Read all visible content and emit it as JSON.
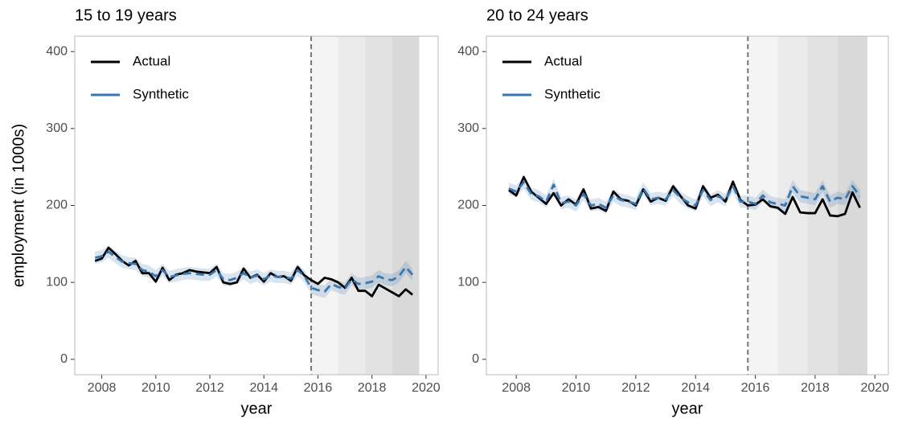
{
  "chart_data": [
    {
      "type": "line",
      "title": "15 to 19 years",
      "x_label": "year",
      "y_label": "employment (in 1000s)",
      "x": [
        2007.75,
        2008,
        2008.25,
        2008.5,
        2008.75,
        2009,
        2009.25,
        2009.5,
        2009.75,
        2010,
        2010.25,
        2010.5,
        2010.75,
        2011,
        2011.25,
        2011.5,
        2011.75,
        2012,
        2012.25,
        2012.5,
        2012.75,
        2013,
        2013.25,
        2013.5,
        2013.75,
        2014,
        2014.25,
        2014.5,
        2014.75,
        2015,
        2015.25,
        2015.5,
        2015.75,
        2016,
        2016.25,
        2016.5,
        2016.75,
        2017,
        2017.25,
        2017.5,
        2017.75,
        2018,
        2018.25,
        2018.5,
        2018.75,
        2019,
        2019.25,
        2019.5
      ],
      "series": [
        {
          "name": "Actual",
          "color": "#000000",
          "dash": false,
          "values": [
            128,
            131,
            145,
            137,
            128,
            122,
            128,
            112,
            112,
            101,
            119,
            103,
            110,
            112,
            116,
            114,
            113,
            112,
            120,
            100,
            98,
            100,
            118,
            106,
            110,
            101,
            112,
            107,
            108,
            102,
            120,
            109,
            103,
            98,
            106,
            104,
            100,
            93,
            106,
            89,
            89,
            82,
            97,
            92,
            87,
            82,
            91,
            84
          ]
        },
        {
          "name": "Synthetic",
          "color": "#3a76b0",
          "dash": true,
          "band_halfwidth": 8,
          "values": [
            132,
            134,
            140,
            133,
            127,
            125,
            124,
            116,
            114,
            108,
            116,
            107,
            109,
            111,
            112,
            111,
            110,
            110,
            116,
            104,
            103,
            106,
            112,
            106,
            109,
            104,
            109,
            107,
            107,
            105,
            116,
            108,
            93,
            90,
            88,
            98,
            94,
            92,
            104,
            98,
            99,
            101,
            108,
            104,
            103,
            108,
            120,
            110
          ]
        }
      ],
      "xlim": [
        2007.0,
        2020.45
      ],
      "ylim": [
        -20,
        420
      ],
      "xticks": [
        2008,
        2010,
        2012,
        2014,
        2016,
        2018,
        2020
      ],
      "yticks": [
        0,
        100,
        200,
        300,
        400
      ],
      "vline": 2015.75,
      "legend": "top-left",
      "shaded_periods": [
        {
          "start": 2015.75,
          "end": 2016.75,
          "color": "#f4f4f4"
        },
        {
          "start": 2016.75,
          "end": 2017.75,
          "color": "#ebebeb"
        },
        {
          "start": 2017.75,
          "end": 2018.75,
          "color": "#e2e2e2"
        },
        {
          "start": 2018.75,
          "end": 2019.75,
          "color": "#d9d9d9"
        }
      ]
    },
    {
      "type": "line",
      "title": "20 to 24 years",
      "x_label": "year",
      "x": [
        2007.75,
        2008,
        2008.25,
        2008.5,
        2008.75,
        2009,
        2009.25,
        2009.5,
        2009.75,
        2010,
        2010.25,
        2010.5,
        2010.75,
        2011,
        2011.25,
        2011.5,
        2011.75,
        2012,
        2012.25,
        2012.5,
        2012.75,
        2013,
        2013.25,
        2013.5,
        2013.75,
        2014,
        2014.25,
        2014.5,
        2014.75,
        2015,
        2015.25,
        2015.5,
        2015.75,
        2016,
        2016.25,
        2016.5,
        2016.75,
        2017,
        2017.25,
        2017.5,
        2017.75,
        2018,
        2018.25,
        2018.5,
        2018.75,
        2019,
        2019.25,
        2019.5
      ],
      "series": [
        {
          "name": "Actual",
          "color": "#000000",
          "dash": false,
          "values": [
            220,
            213,
            237,
            218,
            210,
            202,
            216,
            200,
            208,
            201,
            221,
            196,
            198,
            193,
            218,
            208,
            206,
            200,
            221,
            205,
            210,
            206,
            225,
            212,
            200,
            196,
            225,
            210,
            214,
            205,
            231,
            207,
            200,
            201,
            208,
            199,
            197,
            189,
            211,
            191,
            190,
            190,
            208,
            187,
            186,
            189,
            217,
            197
          ]
        },
        {
          "name": "Synthetic",
          "color": "#3a76b0",
          "dash": true,
          "band_halfwidth": 8,
          "values": [
            222,
            218,
            230,
            215,
            212,
            205,
            227,
            203,
            205,
            200,
            215,
            200,
            202,
            197,
            213,
            207,
            205,
            202,
            222,
            208,
            210,
            208,
            220,
            210,
            204,
            200,
            220,
            207,
            212,
            207,
            225,
            205,
            205,
            202,
            213,
            204,
            202,
            200,
            225,
            212,
            210,
            208,
            225,
            205,
            210,
            208,
            225,
            212
          ]
        }
      ],
      "xlim": [
        2007.0,
        2020.45
      ],
      "ylim": [
        -20,
        420
      ],
      "xticks": [
        2008,
        2010,
        2012,
        2014,
        2016,
        2018,
        2020
      ],
      "yticks": [
        0,
        100,
        200,
        300,
        400
      ],
      "vline": 2015.75,
      "legend": "top-left",
      "shaded_periods": [
        {
          "start": 2015.75,
          "end": 2016.75,
          "color": "#f4f4f4"
        },
        {
          "start": 2016.75,
          "end": 2017.75,
          "color": "#ebebeb"
        },
        {
          "start": 2017.75,
          "end": 2018.75,
          "color": "#e2e2e2"
        },
        {
          "start": 2018.75,
          "end": 2019.75,
          "color": "#d9d9d9"
        }
      ]
    }
  ]
}
